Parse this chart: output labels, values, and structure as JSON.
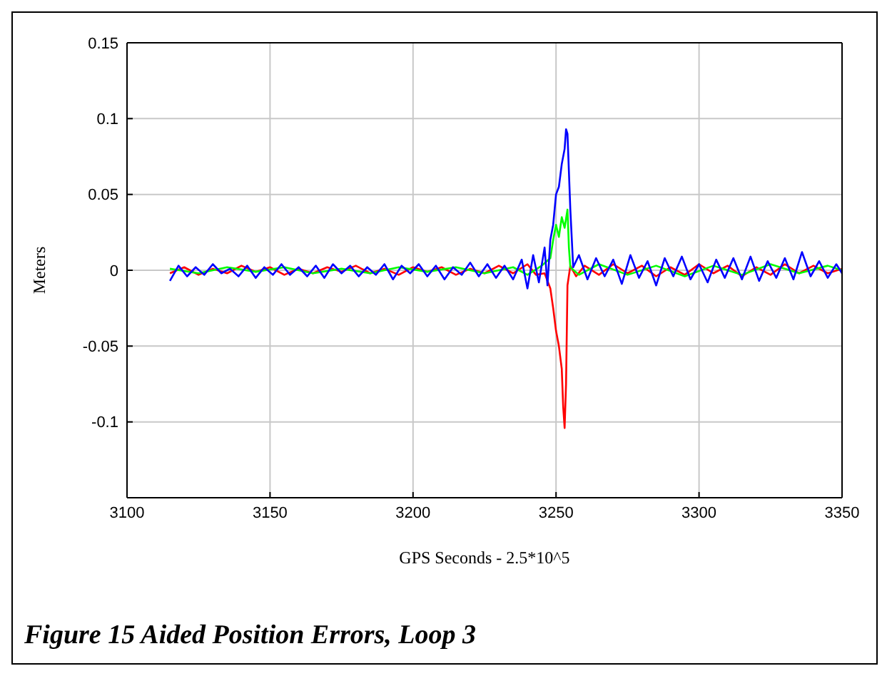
{
  "chart_data": {
    "type": "line",
    "xlabel": "GPS Seconds - 2.5*10^5",
    "ylabel": "Meters",
    "annotations": [
      "Figure 15 Aided Position Errors, Loop 3"
    ],
    "xlim": [
      3100,
      3350
    ],
    "xticks": [
      3100,
      3150,
      3200,
      3250,
      3300,
      3350
    ],
    "ylim": [
      -0.15,
      0.15
    ],
    "yticks": [
      {
        "value": -0.15,
        "label": null
      },
      -0.1,
      -0.05,
      0,
      0.05,
      0.1,
      0.15
    ],
    "grid": true,
    "marker": "none",
    "line_style": "solid",
    "series": [
      {
        "color": "#ff0000",
        "x": [
          3115,
          3120,
          3125,
          3130,
          3135,
          3140,
          3145,
          3150,
          3155,
          3160,
          3165,
          3170,
          3175,
          3180,
          3185,
          3190,
          3195,
          3200,
          3205,
          3210,
          3215,
          3220,
          3225,
          3230,
          3235,
          3240,
          3243,
          3246,
          3248,
          3249,
          3250,
          3251,
          3252,
          3252.5,
          3253,
          3253.5,
          3254,
          3255,
          3257,
          3260,
          3265,
          3270,
          3275,
          3280,
          3285,
          3290,
          3295,
          3300,
          3305,
          3310,
          3315,
          3320,
          3325,
          3330,
          3335,
          3340,
          3345,
          3350
        ],
        "values": [
          -0.002,
          0.002,
          -0.003,
          0.001,
          -0.002,
          0.003,
          -0.001,
          0.002,
          -0.003,
          0.001,
          -0.002,
          0.002,
          -0.001,
          0.003,
          -0.002,
          0.001,
          -0.003,
          0.002,
          -0.001,
          0.002,
          -0.003,
          0.001,
          -0.002,
          0.003,
          -0.002,
          0.004,
          -0.003,
          -0.002,
          -0.012,
          -0.025,
          -0.04,
          -0.05,
          -0.065,
          -0.09,
          -0.104,
          -0.075,
          -0.01,
          0.003,
          -0.004,
          0.003,
          -0.003,
          0.004,
          -0.002,
          0.003,
          -0.004,
          0.002,
          -0.003,
          0.004,
          -0.002,
          0.003,
          -0.004,
          0.002,
          -0.003,
          0.004,
          -0.002,
          0.003,
          -0.002,
          0.001
        ]
      },
      {
        "color": "#00ff00",
        "x": [
          3115,
          3125,
          3135,
          3145,
          3155,
          3165,
          3175,
          3185,
          3195,
          3205,
          3215,
          3225,
          3235,
          3240,
          3245,
          3248,
          3249,
          3250,
          3251,
          3252,
          3253,
          3254,
          3254.5,
          3255,
          3258,
          3265,
          3275,
          3285,
          3295,
          3305,
          3315,
          3325,
          3335,
          3345,
          3350
        ],
        "values": [
          0.001,
          -0.002,
          0.002,
          -0.001,
          0.002,
          -0.002,
          0.001,
          -0.002,
          0.002,
          -0.001,
          0.002,
          -0.002,
          0.002,
          -0.003,
          0.003,
          0.008,
          0.02,
          0.03,
          0.022,
          0.035,
          0.028,
          0.04,
          0.015,
          0.002,
          -0.003,
          0.004,
          -0.003,
          0.003,
          -0.004,
          0.003,
          -0.003,
          0.004,
          -0.002,
          0.003,
          0
        ]
      },
      {
        "color": "#0000ff",
        "x": [
          3115,
          3118,
          3121,
          3124,
          3127,
          3130,
          3133,
          3136,
          3139,
          3142,
          3145,
          3148,
          3151,
          3154,
          3157,
          3160,
          3163,
          3166,
          3169,
          3172,
          3175,
          3178,
          3181,
          3184,
          3187,
          3190,
          3193,
          3196,
          3199,
          3202,
          3205,
          3208,
          3211,
          3214,
          3217,
          3220,
          3223,
          3226,
          3229,
          3232,
          3235,
          3238,
          3240,
          3242,
          3244,
          3246,
          3247,
          3248,
          3249,
          3250,
          3251,
          3252,
          3253,
          3253.5,
          3254,
          3255,
          3256,
          3258,
          3261,
          3264,
          3267,
          3270,
          3273,
          3276,
          3279,
          3282,
          3285,
          3288,
          3291,
          3294,
          3297,
          3300,
          3303,
          3306,
          3309,
          3312,
          3315,
          3318,
          3321,
          3324,
          3327,
          3330,
          3333,
          3336,
          3339,
          3342,
          3345,
          3348,
          3350
        ],
        "values": [
          -0.007,
          0.003,
          -0.004,
          0.002,
          -0.003,
          0.004,
          -0.002,
          0.001,
          -0.004,
          0.003,
          -0.005,
          0.002,
          -0.003,
          0.004,
          -0.003,
          0.002,
          -0.004,
          0.003,
          -0.005,
          0.004,
          -0.002,
          0.003,
          -0.004,
          0.002,
          -0.003,
          0.004,
          -0.006,
          0.003,
          -0.002,
          0.004,
          -0.004,
          0.003,
          -0.006,
          0.002,
          -0.003,
          0.005,
          -0.004,
          0.004,
          -0.005,
          0.003,
          -0.006,
          0.007,
          -0.012,
          0.01,
          -0.008,
          0.015,
          -0.01,
          0.02,
          0.03,
          0.05,
          0.055,
          0.07,
          0.08,
          0.093,
          0.09,
          0.04,
          0.002,
          0.01,
          -0.006,
          0.008,
          -0.004,
          0.007,
          -0.009,
          0.01,
          -0.005,
          0.006,
          -0.01,
          0.008,
          -0.004,
          0.009,
          -0.006,
          0.004,
          -0.008,
          0.007,
          -0.005,
          0.008,
          -0.006,
          0.009,
          -0.007,
          0.006,
          -0.005,
          0.008,
          -0.006,
          0.012,
          -0.004,
          0.006,
          -0.005,
          0.004,
          -0.002
        ]
      }
    ]
  }
}
